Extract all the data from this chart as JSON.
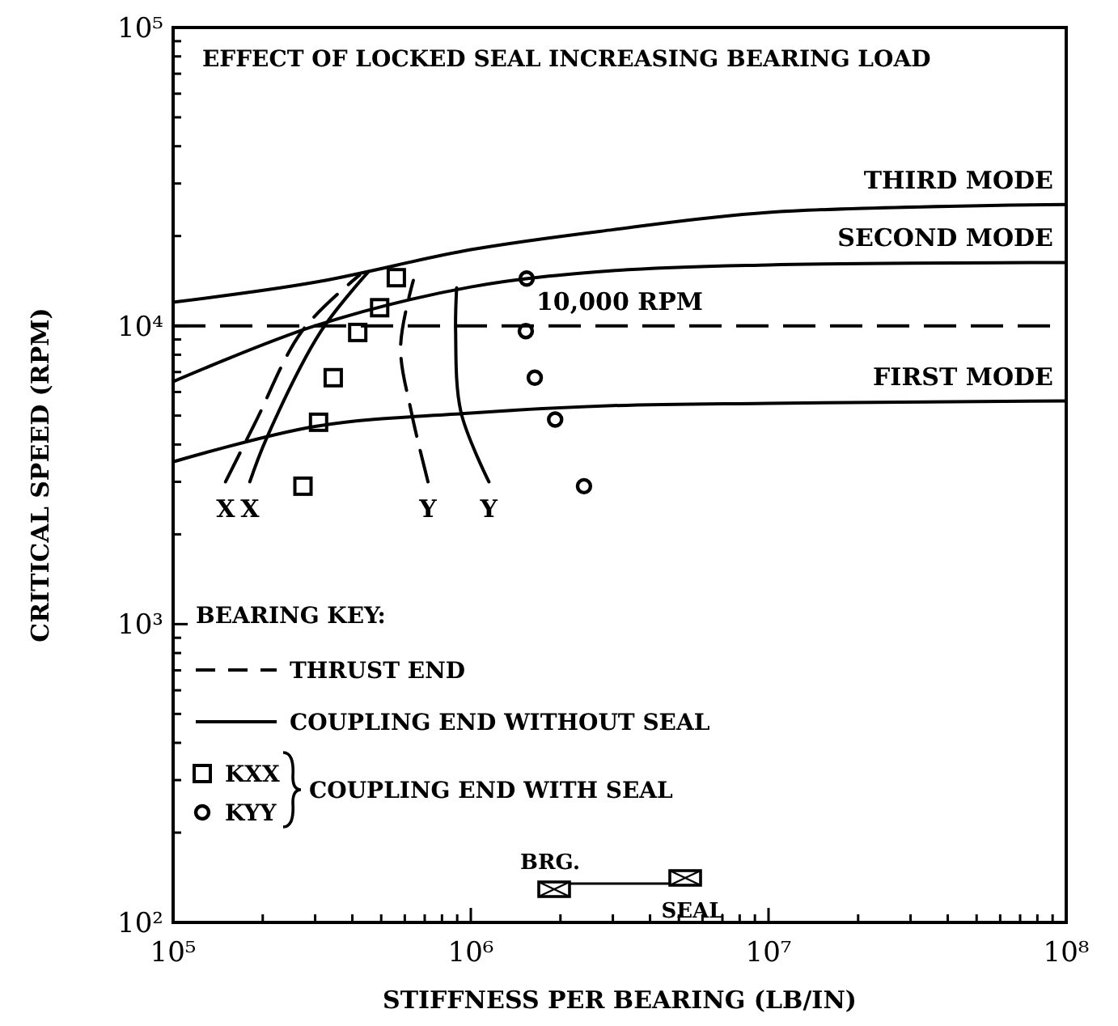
{
  "chart_data": {
    "type": "line",
    "title": "EFFECT OF LOCKED SEAL INCREASING BEARING LOAD",
    "xlabel": "STIFFNESS PER BEARING (LB/IN)",
    "ylabel": "CRITICAL SPEED (RPM)",
    "legend_title": "BEARING KEY:",
    "legend": "bottom left",
    "log": "xy",
    "xlim": [
      100000,
      100000000
    ],
    "ylim": [
      100,
      100000
    ],
    "xticks": [
      {
        "value": 100000,
        "label": "10⁵"
      },
      {
        "value": 200000,
        "label": null
      },
      {
        "value": 300000,
        "label": null
      },
      {
        "value": 400000,
        "label": null
      },
      {
        "value": 500000,
        "label": null
      },
      {
        "value": 600000,
        "label": null
      },
      {
        "value": 700000,
        "label": null
      },
      {
        "value": 800000,
        "label": null
      },
      {
        "value": 900000,
        "label": null
      },
      {
        "value": 1000000,
        "label": "10⁶"
      },
      {
        "value": 2000000,
        "label": null
      },
      {
        "value": 3000000,
        "label": null
      },
      {
        "value": 4000000,
        "label": null
      },
      {
        "value": 5000000,
        "label": null
      },
      {
        "value": 6000000,
        "label": null
      },
      {
        "value": 7000000,
        "label": null
      },
      {
        "value": 8000000,
        "label": null
      },
      {
        "value": 9000000,
        "label": null
      },
      {
        "value": 10000000,
        "label": "10⁷"
      },
      {
        "value": 20000000,
        "label": null
      },
      {
        "value": 30000000,
        "label": null
      },
      {
        "value": 40000000,
        "label": null
      },
      {
        "value": 50000000,
        "label": null
      },
      {
        "value": 60000000,
        "label": null
      },
      {
        "value": 70000000,
        "label": null
      },
      {
        "value": 80000000,
        "label": null
      },
      {
        "value": 90000000,
        "label": null
      },
      {
        "value": 100000000,
        "label": "10⁸"
      }
    ],
    "yticks": [
      {
        "value": 100,
        "label": "10²"
      },
      {
        "value": 200,
        "label": null
      },
      {
        "value": 300,
        "label": null
      },
      {
        "value": 400,
        "label": null
      },
      {
        "value": 500,
        "label": null
      },
      {
        "value": 600,
        "label": null
      },
      {
        "value": 700,
        "label": null
      },
      {
        "value": 800,
        "label": null
      },
      {
        "value": 900,
        "label": null
      },
      {
        "value": 1000,
        "label": "10³"
      },
      {
        "value": 2000,
        "label": null
      },
      {
        "value": 3000,
        "label": null
      },
      {
        "value": 4000,
        "label": null
      },
      {
        "value": 5000,
        "label": null
      },
      {
        "value": 6000,
        "label": null
      },
      {
        "value": 7000,
        "label": null
      },
      {
        "value": 8000,
        "label": null
      },
      {
        "value": 9000,
        "label": null
      },
      {
        "value": 10000,
        "label": "10⁴"
      },
      {
        "value": 20000,
        "label": null
      },
      {
        "value": 30000,
        "label": null
      },
      {
        "value": 40000,
        "label": null
      },
      {
        "value": 50000,
        "label": null
      },
      {
        "value": 60000,
        "label": null
      },
      {
        "value": 70000,
        "label": null
      },
      {
        "value": 80000,
        "label": null
      },
      {
        "value": 90000,
        "label": null
      },
      {
        "value": 100000,
        "label": "10⁵"
      }
    ],
    "ref_lines": [
      {
        "axis": "y",
        "value": 10000,
        "label": "10,000 RPM",
        "color": "#000000",
        "line_style": "dashed"
      }
    ],
    "series": [
      {
        "name": "THIRD MODE",
        "color": "#000000",
        "line_style": "solid",
        "marker": "none",
        "x": [
          100000,
          300000,
          1000000,
          3000000,
          10000000,
          100000000
        ],
        "values": [
          12000,
          14000,
          18000,
          21000,
          24000,
          25500
        ]
      },
      {
        "name": "SECOND MODE",
        "color": "#000000",
        "line_style": "solid",
        "marker": "none",
        "x": [
          100000,
          300000,
          1000000,
          3000000,
          10000000,
          100000000
        ],
        "values": [
          6500,
          10000,
          13500,
          15300,
          16000,
          16300
        ]
      },
      {
        "name": "FIRST MODE",
        "color": "#000000",
        "line_style": "solid",
        "marker": "none",
        "x": [
          100000,
          300000,
          1000000,
          3000000,
          10000000,
          100000000
        ],
        "values": [
          3500,
          4600,
          5100,
          5400,
          5500,
          5600
        ]
      },
      {
        "name": "THRUST END",
        "color": "#000000",
        "line_style": "dashed",
        "marker": "none",
        "x": [
          150000,
          189000,
          271000,
          423000
        ],
        "values": [
          3000,
          4750,
          9600,
          14800
        ]
      },
      {
        "name": "COUPLING END WITHOUT SEAL",
        "color": "#000000",
        "line_style": "solid",
        "marker": "none",
        "x": [
          181000,
          206000,
          314000,
          451000
        ],
        "values": [
          3000,
          4200,
          9600,
          15100
        ]
      },
      {
        "color": "#000000",
        "line_style": "dashed",
        "marker": "none",
        "x": [
          718000,
          631000,
          581000,
          641000
        ],
        "values": [
          3000,
          5150,
          8500,
          14200
        ]
      },
      {
        "color": "#000000",
        "line_style": "solid",
        "marker": "none",
        "x": [
          1150000,
          926000,
          889000,
          896000
        ],
        "values": [
          3000,
          5150,
          9600,
          13400
        ]
      },
      {
        "name": "KXX",
        "type": "scatter",
        "color": "#000000",
        "marker": "square",
        "x": [
          562000,
          494000,
          417000,
          345000,
          308000,
          273000
        ],
        "values": [
          14500,
          11500,
          9500,
          6700,
          4750,
          2900
        ]
      },
      {
        "name": "KYY",
        "type": "scatter",
        "color": "#000000",
        "marker": "circle",
        "x": [
          1540000,
          1530000,
          1640000,
          1920000,
          2400000
        ],
        "values": [
          14400,
          9600,
          6700,
          4850,
          2900
        ]
      }
    ],
    "annotations": [
      "COUPLING END WITH SEAL",
      "BRG.",
      "SEAL",
      "X",
      "X",
      "Y",
      "Y"
    ]
  }
}
